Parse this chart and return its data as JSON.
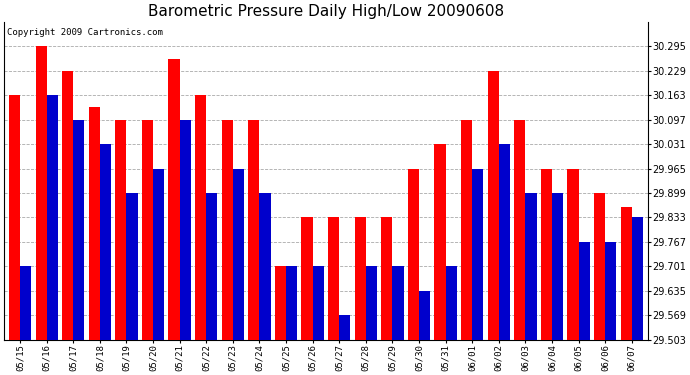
{
  "title": "Barometric Pressure Daily High/Low 20090608",
  "copyright": "Copyright 2009 Cartronics.com",
  "dates": [
    "05/15",
    "05/16",
    "05/17",
    "05/18",
    "05/19",
    "05/20",
    "05/21",
    "05/22",
    "05/23",
    "05/24",
    "05/25",
    "05/26",
    "05/27",
    "05/28",
    "05/29",
    "05/30",
    "05/31",
    "06/01",
    "06/02",
    "06/03",
    "06/04",
    "06/05",
    "06/06",
    "06/07"
  ],
  "highs": [
    30.163,
    30.295,
    30.229,
    30.13,
    30.097,
    30.097,
    30.261,
    30.163,
    30.097,
    30.097,
    29.701,
    29.833,
    29.833,
    29.833,
    29.833,
    29.965,
    30.031,
    30.097,
    30.229,
    30.097,
    29.965,
    29.965,
    29.899,
    29.86
  ],
  "lows": [
    29.701,
    30.163,
    30.097,
    30.031,
    29.899,
    29.965,
    30.097,
    29.899,
    29.965,
    29.899,
    29.701,
    29.701,
    29.569,
    29.701,
    29.701,
    29.635,
    29.701,
    29.965,
    30.031,
    29.899,
    29.899,
    29.767,
    29.767,
    29.833
  ],
  "bar_color_high": "#FF0000",
  "bar_color_low": "#0000CC",
  "ylim_min": 29.503,
  "ylim_max": 30.361,
  "yticks": [
    29.503,
    29.569,
    29.635,
    29.701,
    29.767,
    29.833,
    29.899,
    29.965,
    30.031,
    30.097,
    30.163,
    30.229,
    30.295
  ],
  "background_color": "#FFFFFF",
  "grid_color": "#AAAAAA",
  "title_fontsize": 11,
  "copyright_fontsize": 6.5
}
